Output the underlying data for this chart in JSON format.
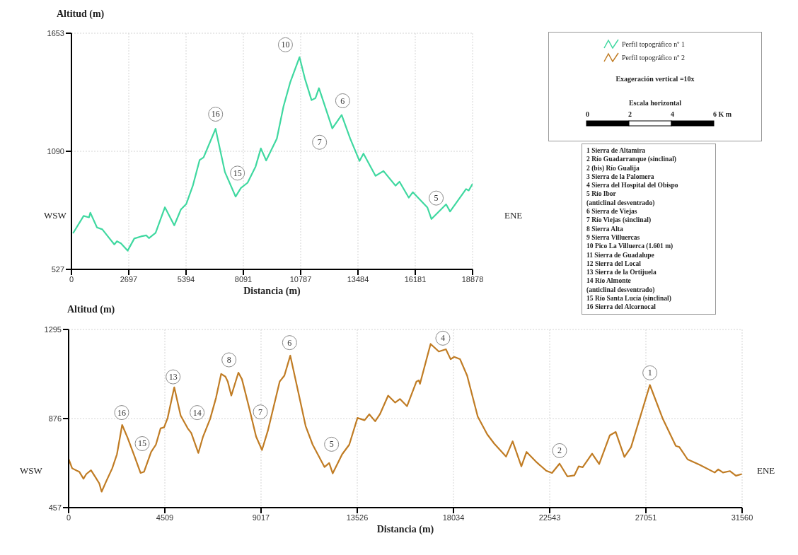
{
  "chart_data": [
    {
      "type": "line",
      "xlabel": "Distancia (m)",
      "ylabel": "Altitud (m)",
      "x": [
        73,
        573,
        826,
        889,
        1202,
        1452,
        1702,
        2018,
        2142,
        2331,
        2644,
        2957,
        3270,
        3523,
        3647,
        3960,
        4399,
        4839,
        5152,
        5405,
        5718,
        6031,
        6218,
        6783,
        7223,
        7726,
        7975,
        8289,
        8665,
        8915,
        9164,
        9667,
        9980,
        10293,
        10733,
        10985,
        11299,
        11485,
        11648,
        12277,
        12717,
        13117,
        13557,
        13743,
        14310,
        14685,
        15251,
        15438,
        15874,
        16064,
        16753,
        16943,
        17632,
        17819,
        18572,
        18695,
        18878
      ],
      "series": [
        {
          "name": "Perfil topográfico nº 1",
          "color": "#3fd8a0",
          "values": [
            699,
            782,
            775,
            797,
            727,
            718,
            686,
            646,
            661,
            651,
            616,
            674,
            684,
            689,
            676,
            701,
            823,
            737,
            813,
            839,
            928,
            1048,
            1061,
            1197,
            991,
            874,
            915,
            940,
            1017,
            1104,
            1046,
            1151,
            1304,
            1418,
            1539,
            1437,
            1334,
            1344,
            1391,
            1199,
            1263,
            1151,
            1044,
            1079,
            973,
            996,
            926,
            945,
            869,
            895,
            822,
            767,
            837,
            803,
            910,
            903,
            935
          ]
        }
      ],
      "xlim": [
        0,
        18878
      ],
      "xticks": [
        0,
        2697,
        5394,
        8091,
        10787,
        13484,
        16181,
        18878
      ],
      "ylim": [
        527,
        1653
      ],
      "yticks": [
        527,
        1090,
        1653
      ],
      "grid": true,
      "legend": "right",
      "marker": "none",
      "line_style": "solid",
      "annotations": [
        "WSW",
        "ENE",
        {
          "text": "16",
          "x": 6783,
          "y": 1267
        },
        {
          "text": "15",
          "x": 7813,
          "y": 986
        },
        {
          "text": "10",
          "x": 10070,
          "y": 1598
        },
        {
          "text": "7",
          "x": 11675,
          "y": 1133
        },
        {
          "text": "6",
          "x": 12764,
          "y": 1331
        },
        {
          "text": "5",
          "x": 17166,
          "y": 867
        }
      ]
    },
    {
      "type": "line",
      "xlabel": "Distancia (m)",
      "ylabel": "Altitud (m)",
      "x": [
        0,
        166,
        387,
        497,
        696,
        829,
        1050,
        1271,
        1437,
        1547,
        1768,
        2044,
        2265,
        2508,
        2763,
        3094,
        3370,
        3536,
        3868,
        4089,
        4310,
        4475,
        4641,
        4950,
        5249,
        5580,
        5746,
        6078,
        6299,
        6630,
        6906,
        7149,
        7348,
        7458,
        7624,
        7956,
        8122,
        8453,
        8785,
        9061,
        9337,
        9890,
        10111,
        10387,
        10774,
        11106,
        11437,
        11990,
        12210,
        12376,
        12818,
        13150,
        13536,
        13868,
        14089,
        14365,
        14586,
        14973,
        15304,
        15525,
        15857,
        16299,
        16409,
        16464,
        16962,
        17349,
        17680,
        17901,
        18067,
        18343,
        18674,
        19172,
        19614,
        19945,
        20498,
        20807,
        21216,
        21459,
        21934,
        22376,
        22652,
        23006,
        23370,
        23702,
        23901,
        24089,
        24531,
        24862,
        25359,
        25636,
        26044,
        26354,
        27238,
        27846,
        28454,
        28619,
        29006,
        29558,
        30277,
        30442,
        30663,
        30994,
        31270,
        31548
      ],
      "series": [
        {
          "name": "Perfil topográfico nº 2",
          "color": "#c07c24",
          "values": [
            686,
            642,
            631,
            626,
            593,
            615,
            633,
            598,
            571,
            532,
            582,
            642,
            708,
            846,
            786,
            697,
            620,
            626,
            719,
            753,
            830,
            835,
            879,
            1023,
            890,
            830,
            808,
            714,
            791,
            874,
            973,
            1086,
            1073,
            1050,
            984,
            1092,
            1061,
            929,
            791,
            728,
            819,
            1050,
            1078,
            1172,
            995,
            841,
            753,
            648,
            667,
            618,
            708,
            753,
            879,
            868,
            896,
            863,
            896,
            984,
            951,
            968,
            934,
            1050,
            1056,
            1039,
            1227,
            1191,
            1202,
            1155,
            1166,
            1155,
            1078,
            885,
            802,
            758,
            697,
            769,
            651,
            719,
            670,
            631,
            620,
            664,
            604,
            609,
            651,
            647,
            711,
            662,
            797,
            813,
            695,
            741,
            1034,
            874,
            747,
            742,
            684,
            659,
            622,
            637,
            622,
            629,
            607,
            615
          ]
        }
      ],
      "xlim": [
        0,
        31560
      ],
      "xticks": [
        0,
        4509,
        9017,
        13526,
        18034,
        22543,
        27051,
        31560
      ],
      "ylim": [
        457,
        1295
      ],
      "yticks": [
        457,
        876,
        1295
      ],
      "grid": true,
      "legend": "top right",
      "marker": "none",
      "line_style": "solid",
      "annotations": [
        "WSW",
        "ENE",
        {
          "text": "16",
          "x": 2486,
          "y": 904
        },
        {
          "text": "15",
          "x": 3448,
          "y": 758
        },
        {
          "text": "13",
          "x": 4895,
          "y": 1072
        },
        {
          "text": "14",
          "x": 6022,
          "y": 904
        },
        {
          "text": "8",
          "x": 7514,
          "y": 1152
        },
        {
          "text": "7",
          "x": 8984,
          "y": 907
        },
        {
          "text": "6",
          "x": 10354,
          "y": 1233
        },
        {
          "text": "5",
          "x": 12321,
          "y": 755
        },
        {
          "text": "4",
          "x": 17536,
          "y": 1254
        },
        {
          "text": "2",
          "x": 23006,
          "y": 725
        },
        {
          "text": "1",
          "x": 27238,
          "y": 1091
        }
      ]
    },
    {
      "type": "other",
      "annotations": [
        "Exageración vertical =10x",
        "Escala horizontal",
        "0",
        "2",
        "4",
        "6 K m"
      ]
    },
    {
      "type": "other",
      "annotations": [
        "1 Sierra de Altamira",
        "2 Río Guadarranque (sinclinal)",
        "2 (bis) Río Gualija",
        "3 Sierra de la Palomera",
        "4 Sierra del Hospital del Obispo",
        "5 Río Ibor",
        "(anticlinal desventrado)",
        "6 Sierra de Viejas",
        "7 Río Viejas (sinclinal)",
        "8 Sierra Alta",
        "9 Sierra Villuercas",
        "10 Pico La Villuerca (1.601 m)",
        "11 Sierra de Guadalupe",
        "12 Sierra del Local",
        "13 Sierra de la Ortijuela",
        "14 Río Almonte",
        "(anticlinal desventrado)",
        "15 Río Santa Lucía (sinclinal)",
        "16 Sierra del Alcornocal"
      ]
    }
  ]
}
